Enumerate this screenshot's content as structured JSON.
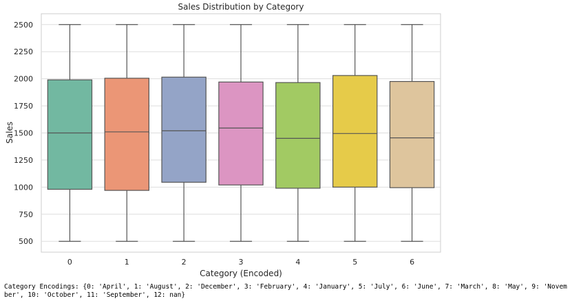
{
  "chart_data": {
    "type": "boxplot",
    "title": "Sales Distribution by Category",
    "xlabel": "Category (Encoded)",
    "ylabel": "Sales",
    "ylim": [
      400,
      2600
    ],
    "yticks": [
      500,
      750,
      1000,
      1250,
      1500,
      1750,
      2000,
      2250,
      2500
    ],
    "grid": true,
    "categories": [
      "0",
      "1",
      "2",
      "3",
      "4",
      "5",
      "6"
    ],
    "boxes": [
      {
        "category": "0",
        "whislo": 500,
        "q1": 980,
        "med": 1500,
        "q3": 1990,
        "whishi": 2500,
        "color": "#72b8a1"
      },
      {
        "category": "1",
        "whislo": 500,
        "q1": 970,
        "med": 1510,
        "q3": 2005,
        "whishi": 2500,
        "color": "#eb9676"
      },
      {
        "category": "2",
        "whislo": 500,
        "q1": 1045,
        "med": 1520,
        "q3": 2015,
        "whishi": 2500,
        "color": "#94a4c7"
      },
      {
        "category": "3",
        "whislo": 500,
        "q1": 1020,
        "med": 1545,
        "q3": 1970,
        "whishi": 2500,
        "color": "#dc95c2"
      },
      {
        "category": "4",
        "whislo": 500,
        "q1": 990,
        "med": 1450,
        "q3": 1965,
        "whishi": 2500,
        "color": "#a2ca63"
      },
      {
        "category": "5",
        "whislo": 500,
        "q1": 1000,
        "med": 1495,
        "q3": 2030,
        "whishi": 2500,
        "color": "#e6cb49"
      },
      {
        "category": "6",
        "whislo": 500,
        "q1": 995,
        "med": 1455,
        "q3": 1975,
        "whishi": 2500,
        "color": "#dec59d"
      }
    ]
  },
  "output": {
    "encodings_text": "Category Encodings: {0: 'April', 1: 'August', 2: 'December', 3: 'February', 4: 'January', 5: 'July', 6: 'June', 7: 'March', 8: 'May', 9: 'November', 10: 'October', 11: 'September', 12: nan}"
  }
}
